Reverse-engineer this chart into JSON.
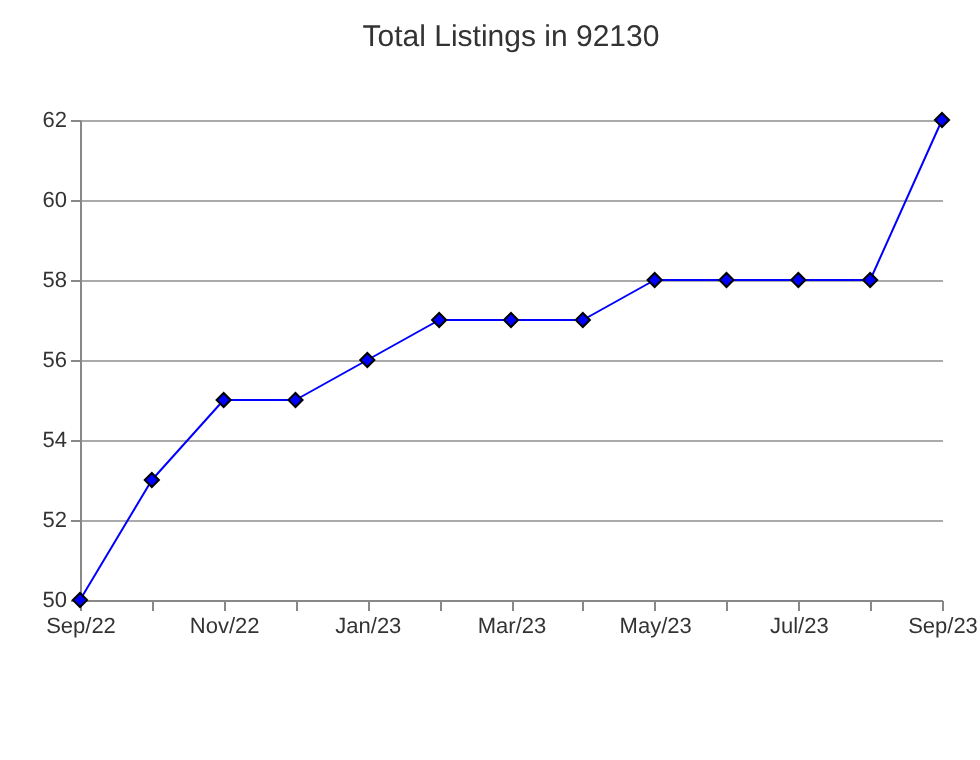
{
  "chart_data": {
    "type": "line",
    "title": "Total Listings in 92130",
    "categories": [
      "Sep/22",
      null,
      "Nov/22",
      null,
      "Jan/23",
      null,
      "Mar/23",
      null,
      "May/23",
      null,
      "Jul/23",
      null,
      "Sep/23"
    ],
    "series": [
      {
        "color": "#0000ff",
        "values": [
          50,
          53,
          55,
          55,
          56,
          57,
          57,
          57,
          58,
          58,
          58,
          58,
          62
        ]
      }
    ],
    "ylim": [
      50,
      62
    ],
    "yticks": [
      50,
      52,
      54,
      56,
      58,
      60,
      62
    ],
    "grid": "y",
    "marker": "diamond",
    "line_style": "solid"
  }
}
